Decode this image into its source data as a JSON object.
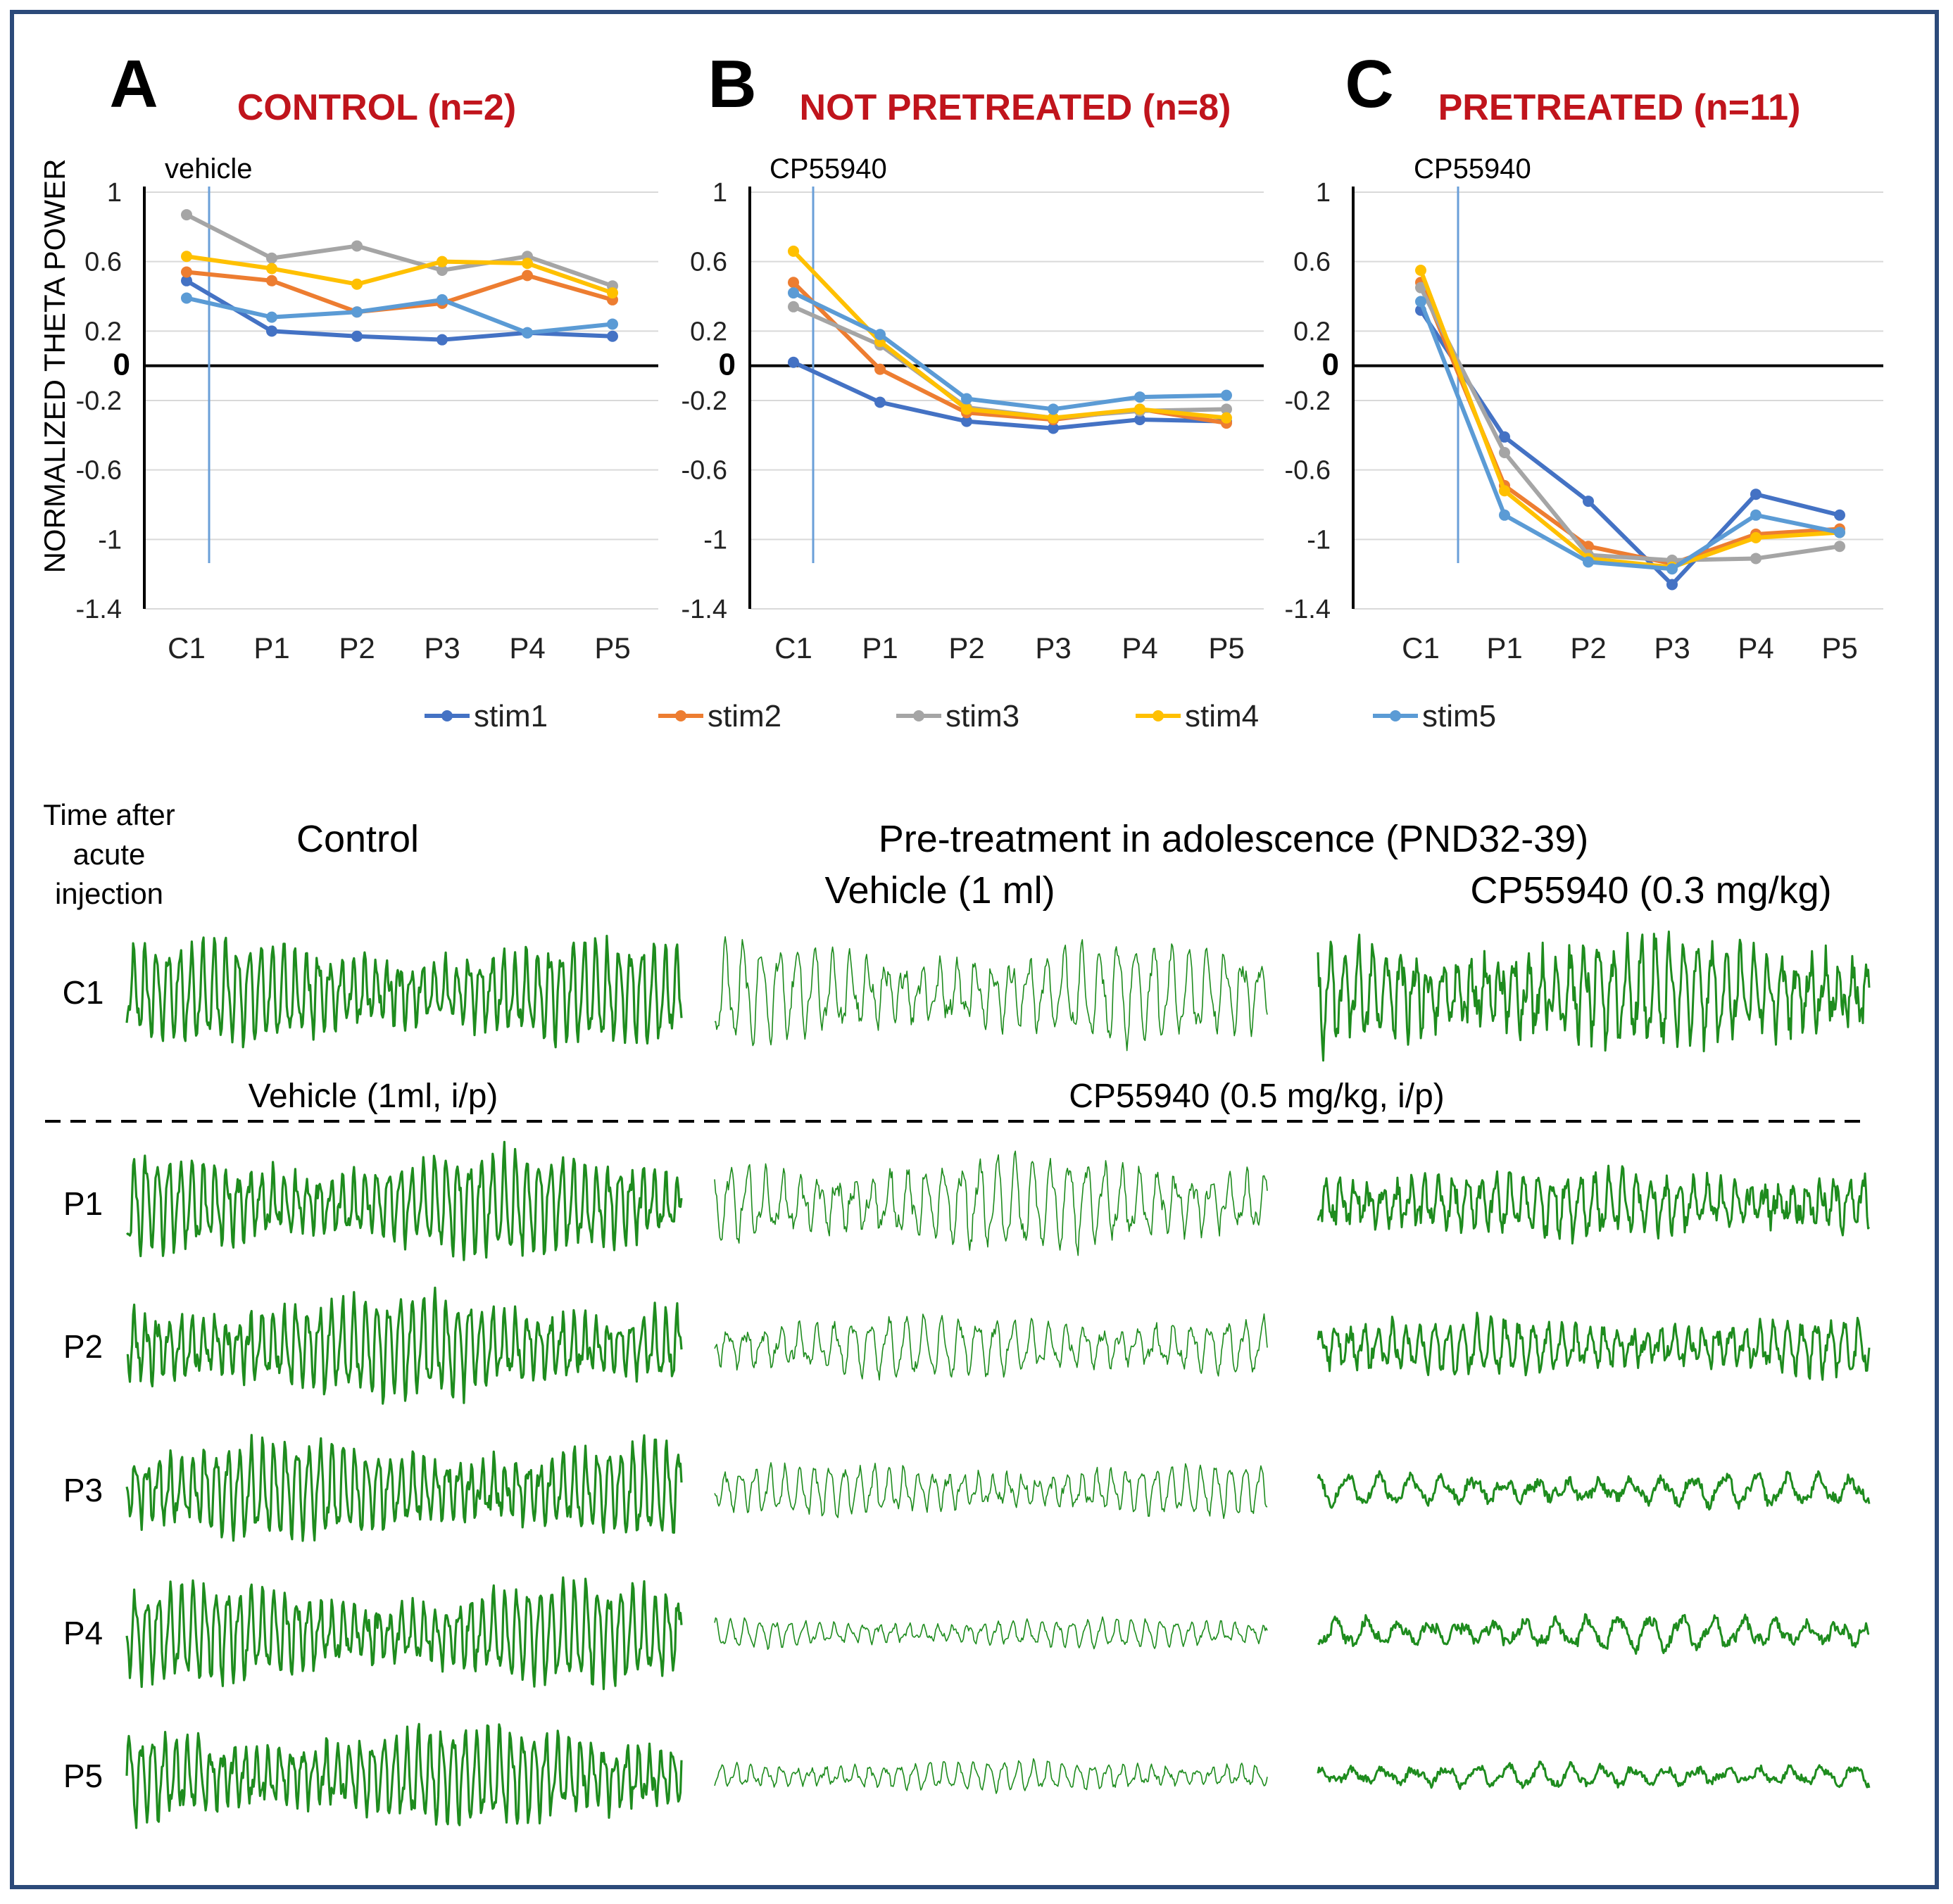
{
  "colors": {
    "border": "#2c4a7a",
    "title_red": "#c0141c",
    "trace_green": "#1e8c1e",
    "grid": "#d9d9d9",
    "vline": "#6a9fd8",
    "series": {
      "stim1": "#4472c4",
      "stim2": "#ed7d31",
      "stim3": "#a5a5a5",
      "stim4": "#ffc000",
      "stim5": "#5b9bd5"
    }
  },
  "legend": [
    "stim1",
    "stim2",
    "stim3",
    "stim4",
    "stim5"
  ],
  "y_axis": {
    "label": "NORMALIZED THETA POWER",
    "ticks": [
      "1",
      "0.6",
      "0.2",
      "0",
      "-0.2",
      "-0.6",
      "-1",
      "-1.4"
    ],
    "tick_values": [
      1,
      0.6,
      0.2,
      0,
      -0.2,
      -0.6,
      -1,
      -1.4
    ]
  },
  "chart_data": [
    {
      "type": "line",
      "panel_letter": "A",
      "title": "CONTROL (n=2)",
      "marker_label": "vehicle",
      "categories": [
        "C1",
        "P1",
        "P2",
        "P3",
        "P4",
        "P5"
      ],
      "ylim": [
        -1.4,
        1
      ],
      "series": [
        {
          "name": "stim1",
          "values": [
            0.49,
            0.2,
            0.17,
            0.15,
            0.19,
            0.17
          ]
        },
        {
          "name": "stim2",
          "values": [
            0.54,
            0.49,
            0.31,
            0.36,
            0.52,
            0.38
          ]
        },
        {
          "name": "stim3",
          "values": [
            0.87,
            0.62,
            0.69,
            0.55,
            0.63,
            0.46
          ]
        },
        {
          "name": "stim4",
          "values": [
            0.63,
            0.56,
            0.47,
            0.6,
            0.59,
            0.42
          ]
        },
        {
          "name": "stim5",
          "values": [
            0.39,
            0.28,
            0.31,
            0.38,
            0.19,
            0.24
          ]
        }
      ]
    },
    {
      "type": "line",
      "panel_letter": "B",
      "title": "NOT PRETREATED (n=8)",
      "marker_label": "CP55940",
      "categories": [
        "C1",
        "P1",
        "P2",
        "P3",
        "P4",
        "P5"
      ],
      "ylim": [
        -1.4,
        1
      ],
      "series": [
        {
          "name": "stim1",
          "values": [
            0.02,
            -0.21,
            -0.32,
            -0.36,
            -0.31,
            -0.32
          ]
        },
        {
          "name": "stim2",
          "values": [
            0.48,
            -0.02,
            -0.27,
            -0.31,
            -0.25,
            -0.33
          ]
        },
        {
          "name": "stim3",
          "values": [
            0.34,
            0.12,
            -0.24,
            -0.3,
            -0.26,
            -0.25
          ]
        },
        {
          "name": "stim4",
          "values": [
            0.66,
            0.14,
            -0.25,
            -0.3,
            -0.25,
            -0.3
          ]
        },
        {
          "name": "stim5",
          "values": [
            0.42,
            0.18,
            -0.19,
            -0.25,
            -0.18,
            -0.17
          ]
        }
      ]
    },
    {
      "type": "line",
      "panel_letter": "C",
      "title": "PRETREATED (n=11)",
      "marker_label": "CP55940",
      "categories": [
        "C1",
        "P1",
        "P2",
        "P3",
        "P4",
        "P5"
      ],
      "ylim": [
        -1.4,
        1
      ],
      "series": [
        {
          "name": "stim1",
          "values": [
            0.32,
            -0.41,
            -0.78,
            -1.26,
            -0.74,
            -0.86
          ]
        },
        {
          "name": "stim2",
          "values": [
            0.48,
            -0.69,
            -1.04,
            -1.14,
            -0.97,
            -0.94
          ]
        },
        {
          "name": "stim3",
          "values": [
            0.45,
            -0.5,
            -1.09,
            -1.12,
            -1.11,
            -1.04
          ]
        },
        {
          "name": "stim4",
          "values": [
            0.55,
            -0.72,
            -1.11,
            -1.16,
            -0.99,
            -0.96
          ]
        },
        {
          "name": "stim5",
          "values": [
            0.37,
            -0.86,
            -1.13,
            -1.17,
            -0.86,
            -0.96
          ]
        }
      ]
    }
  ],
  "traces": {
    "time_header": [
      "Time after",
      "acute",
      "injection"
    ],
    "control_title": "Control",
    "pretreat_title": "Pre-treatment in adolescence (PND32-39)",
    "vehicle_title": "Vehicle (1 ml)",
    "cp_title": "CP55940 (0.3 mg/kg)",
    "acute_vehicle": "Vehicle (1ml, i/p)",
    "acute_cp": "CP55940 (0.5 mg/kg, i/p)",
    "rows": [
      "C1",
      "P1",
      "P2",
      "P3",
      "P4",
      "P5"
    ]
  }
}
